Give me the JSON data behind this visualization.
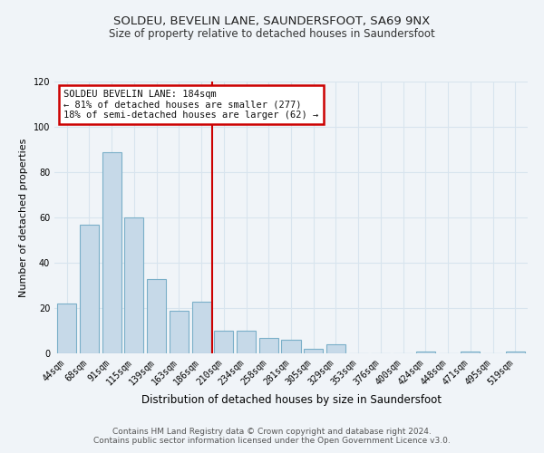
{
  "title": "SOLDEU, BEVELIN LANE, SAUNDERSFOOT, SA69 9NX",
  "subtitle": "Size of property relative to detached houses in Saundersfoot",
  "xlabel": "Distribution of detached houses by size in Saundersfoot",
  "ylabel": "Number of detached properties",
  "bin_labels": [
    "44sqm",
    "68sqm",
    "91sqm",
    "115sqm",
    "139sqm",
    "163sqm",
    "186sqm",
    "210sqm",
    "234sqm",
    "258sqm",
    "281sqm",
    "305sqm",
    "329sqm",
    "353sqm",
    "376sqm",
    "400sqm",
    "424sqm",
    "448sqm",
    "471sqm",
    "495sqm",
    "519sqm"
  ],
  "bar_heights": [
    22,
    57,
    89,
    60,
    33,
    19,
    23,
    10,
    10,
    7,
    6,
    2,
    4,
    0,
    0,
    0,
    1,
    0,
    1,
    0,
    1
  ],
  "bar_color": "#c6d9e8",
  "bar_edge_color": "#7aafc8",
  "vline_x": 6.5,
  "vline_color": "#cc0000",
  "ylim": [
    0,
    120
  ],
  "yticks": [
    0,
    20,
    40,
    60,
    80,
    100,
    120
  ],
  "annotation_title": "SOLDEU BEVELIN LANE: 184sqm",
  "annotation_line1": "← 81% of detached houses are smaller (277)",
  "annotation_line2": "18% of semi-detached houses are larger (62) →",
  "annotation_box_color": "#ffffff",
  "annotation_box_edge": "#cc0000",
  "footer_line1": "Contains HM Land Registry data © Crown copyright and database right 2024.",
  "footer_line2": "Contains public sector information licensed under the Open Government Licence v3.0.",
  "background_color": "#f0f4f8",
  "grid_color": "#d8e4ee",
  "title_fontsize": 9.5,
  "subtitle_fontsize": 8.5,
  "xlabel_fontsize": 8.5,
  "ylabel_fontsize": 8,
  "tick_fontsize": 7,
  "footer_fontsize": 6.5,
  "annot_fontsize": 7.5
}
